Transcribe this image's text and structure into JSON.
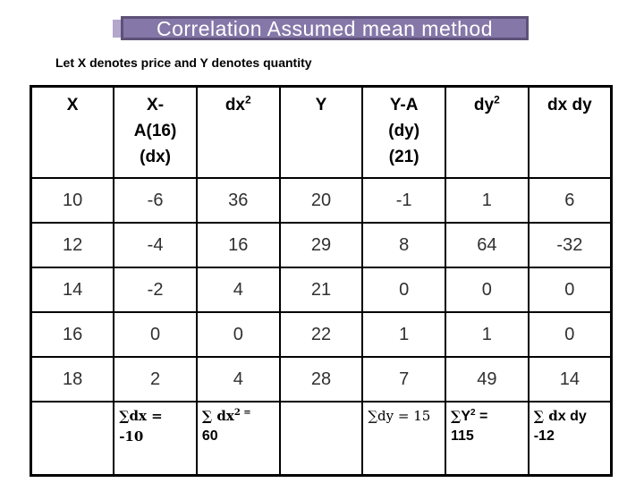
{
  "title": "Correlation Assumed mean method",
  "subtitle": "Let X denotes price and Y denotes quantity",
  "colors": {
    "title_bg": "#8577a8",
    "title_border": "#5e5178",
    "title_highlight": "#b3a7cc",
    "title_text": "#ffffff",
    "table_border": "#000000"
  },
  "table": {
    "headers": {
      "col1": "X",
      "col2_line1": "X-",
      "col2_line2": "A(16)",
      "col2_line3": "(dx)",
      "col3_base": "dx",
      "col3_sup": "2",
      "col4": "Y",
      "col5_line1": "Y-A",
      "col5_line2": "(dy)",
      "col5_line3": "(21)",
      "col6_base": "dy",
      "col6_sup": "2",
      "col7": "dx dy"
    },
    "rows": [
      [
        "10",
        "-6",
        "36",
        "20",
        "-1",
        "1",
        "6"
      ],
      [
        "12",
        "-4",
        "16",
        "29",
        "8",
        "64",
        "-32"
      ],
      [
        "14",
        "-2",
        "4",
        "21",
        "0",
        "0",
        "0"
      ],
      [
        "16",
        "0",
        "0",
        "22",
        "1",
        "1",
        "0"
      ],
      [
        "18",
        "2",
        "4",
        "28",
        "7",
        "49",
        "14"
      ]
    ],
    "summary": {
      "sum_dx_label": "∑dx =",
      "sum_dx_value": "-10",
      "sum_dx2_base": "∑ dx",
      "sum_dx2_sup": "2 =",
      "sum_dx2_value": "60",
      "sum_dy": "∑dy = 15",
      "sum_y2_sigma": "∑",
      "sum_y2_base": "Y",
      "sum_y2_sup": "2",
      "sum_y2_post": " =",
      "sum_y2_value": "115",
      "sum_dxdy_sigma": "∑ d",
      "sum_dxdy_base": "x dy",
      "sum_dxdy_value": "-12"
    }
  }
}
